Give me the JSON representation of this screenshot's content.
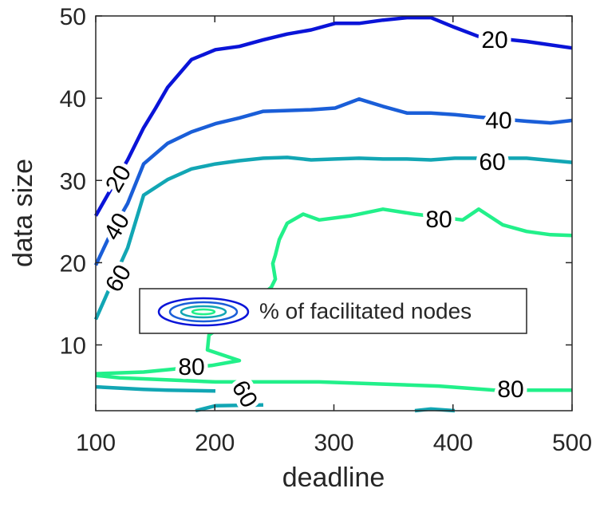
{
  "chart_data": {
    "type": "contour",
    "x_label": "deadline",
    "y_label": "data size",
    "legend_title": "% of facilitated nodes",
    "xlim": [
      100,
      500
    ],
    "ylim": [
      2,
      50
    ],
    "xticks": [
      100,
      200,
      300,
      400,
      500
    ],
    "yticks": [
      10,
      20,
      30,
      40,
      50
    ],
    "series": [
      {
        "name": "20",
        "color": "#0a14d8",
        "x": [
          100,
          113.4,
          126.8,
          140.2,
          150.3,
          160.3,
          180.4,
          200.5,
          220.6,
          240.7,
          260.8,
          280.9,
          301,
          321.1,
          341.2,
          361.3,
          381.4,
          401.5,
          421.6,
          461.8,
          500
        ],
        "y": [
          25.7,
          29.1,
          32.5,
          36.4,
          38.8,
          41.3,
          44.7,
          45.9,
          46.3,
          47.1,
          47.8,
          48.3,
          49.1,
          49.1,
          49.5,
          49.8,
          49.8,
          48.6,
          47.5,
          46.9,
          46.1
        ]
      },
      {
        "name": "40",
        "color": "#1a5ed8",
        "x": [
          100,
          113.4,
          126.8,
          140.2,
          160.3,
          180.4,
          200.5,
          220.6,
          240.7,
          260.8,
          280.9,
          301,
          321.1,
          341.2,
          361.3,
          381.4,
          401.5,
          421.6,
          461.8,
          481.9,
          500
        ],
        "y": [
          19.7,
          23.8,
          27.2,
          32.0,
          34.5,
          35.9,
          36.9,
          37.6,
          38.4,
          38.5,
          38.6,
          38.8,
          39.9,
          39.0,
          38.2,
          38.2,
          38.0,
          37.7,
          37.2,
          37.0,
          37.3
        ]
      },
      {
        "name": "60",
        "color": "#12a6b4",
        "x": [
          100,
          113.4,
          126.8,
          140.2,
          160.3,
          180.4,
          200.5,
          220.6,
          240.7,
          260.8,
          280.9,
          301,
          321.1,
          341.2,
          361.3,
          381.4,
          401.5,
          421.6,
          461.8,
          500,
          null,
          100,
          140.2,
          160.3,
          200.5,
          null,
          183.8,
          200.5,
          240.7,
          null,
          368.0,
          381.4,
          401.5
        ],
        "y": [
          13.1,
          17.5,
          21.8,
          28.2,
          30.1,
          31.4,
          32.0,
          32.4,
          32.7,
          32.8,
          32.5,
          32.6,
          32.7,
          32.6,
          32.6,
          32.5,
          32.7,
          32.7,
          32.7,
          32.2,
          null,
          4.9,
          4.6,
          4.5,
          4.4,
          null,
          2.0,
          2.6,
          2.7,
          null,
          2.0,
          2.2,
          2.0
        ]
      },
      {
        "name": "80",
        "color": "#22f08a",
        "x": [
          500,
          481.9,
          461.8,
          441.7,
          421.6,
          408.2,
          368.0,
          341.2,
          314.4,
          287.6,
          274.2,
          260.8,
          254.1,
          250.8,
          248.7,
          250.8,
          247.4,
          213.9,
          195.1,
          193.8,
          220.6,
          197.2,
          140.2,
          100,
          null,
          100,
          120.1,
          200.5,
          287.6,
          388.1,
          435.0,
          500
        ],
        "y": [
          23.3,
          23.4,
          23.8,
          24.6,
          26.5,
          25.2,
          25.9,
          26.5,
          25.7,
          25.2,
          25.9,
          24.8,
          22.8,
          20.9,
          19.9,
          18.0,
          17.0,
          13.1,
          11.2,
          9.4,
          8.1,
          7.5,
          6.7,
          6.5,
          null,
          6.3,
          6.0,
          5.5,
          5.5,
          5.0,
          4.5,
          4.5
        ]
      }
    ]
  }
}
